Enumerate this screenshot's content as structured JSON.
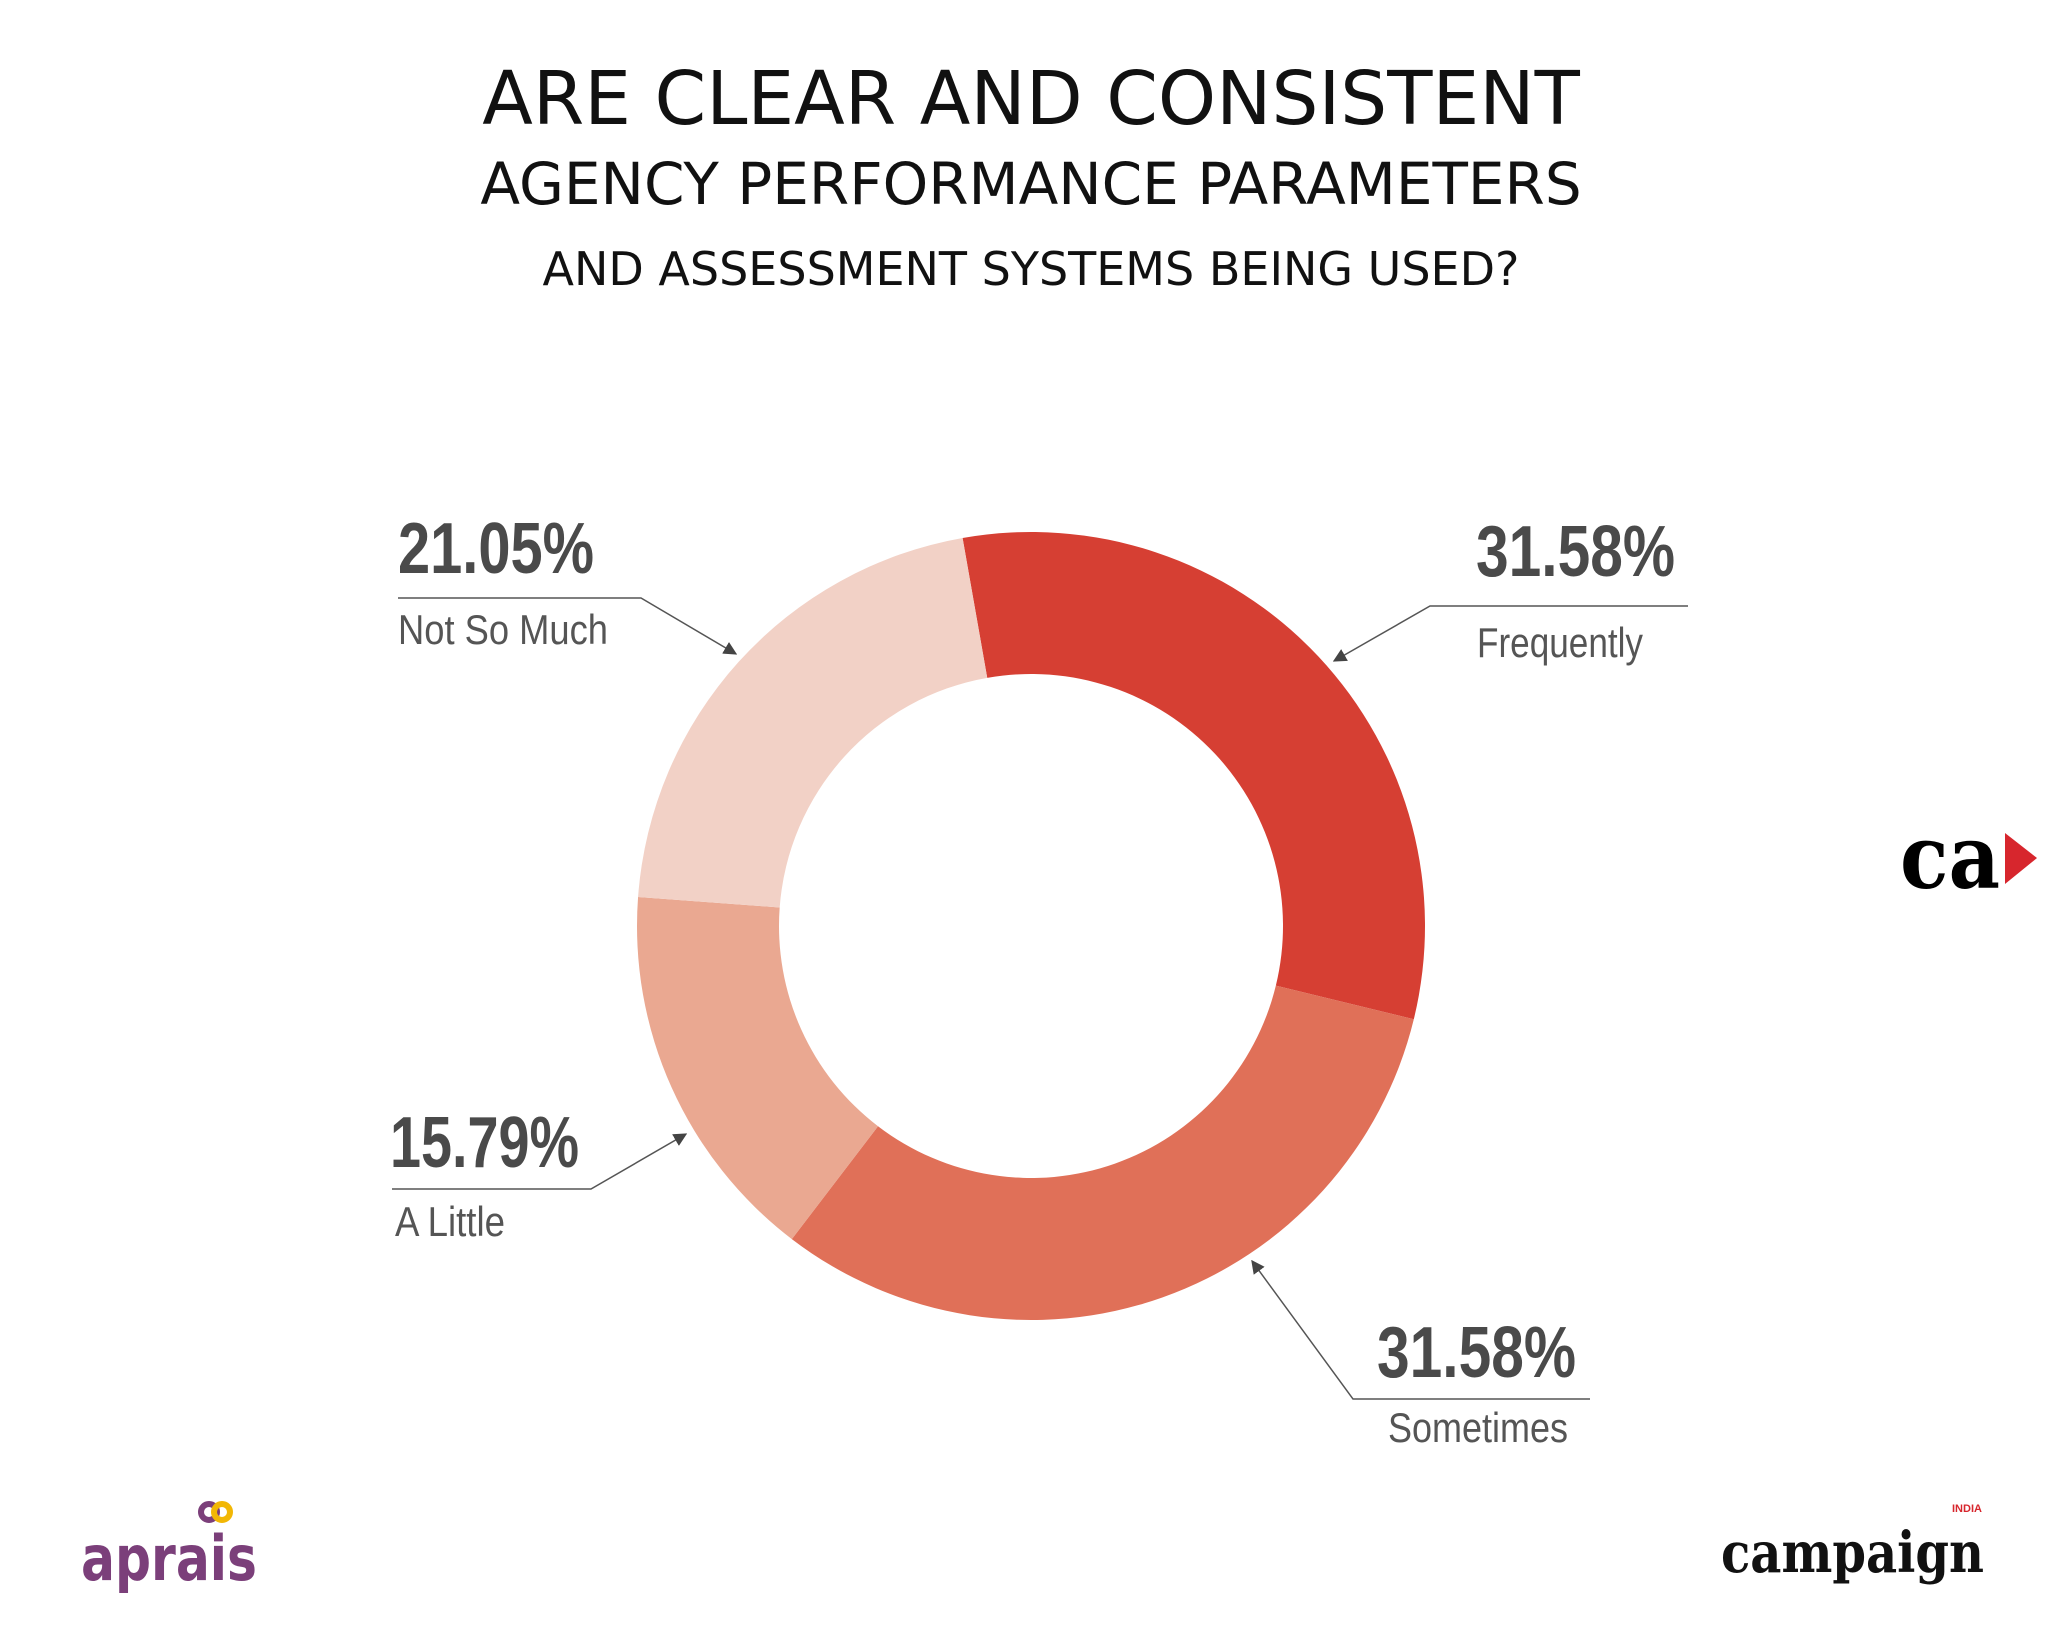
{
  "chart_data": {
    "type": "pie",
    "style": "donut",
    "title": [
      "ARE CLEAR AND CONSISTENT",
      "AGENCY PERFORMANCE PARAMETERS",
      "AND ASSESSMENT SYSTEMS BEING USED?"
    ],
    "slices": [
      {
        "label": "Frequently",
        "value": 31.58,
        "display": "31.58%",
        "color": "#D63F33"
      },
      {
        "label": "Sometimes",
        "value": 31.58,
        "display": "31.58%",
        "color": "#E07058"
      },
      {
        "label": "A Little",
        "value": 15.79,
        "display": "15.79%",
        "color": "#EAA891"
      },
      {
        "label": "Not So Much",
        "value": 21.05,
        "display": "21.05%",
        "color": "#F2D1C6"
      }
    ]
  },
  "logos": {
    "aprais": "aprais",
    "campaign": "campaign",
    "campaign_sub": "INDIA",
    "ca": "ca"
  },
  "colors": {
    "aprais_purple": "#7B3F7A",
    "aprais_gold": "#F2B705",
    "ca_red": "#D7262D"
  }
}
